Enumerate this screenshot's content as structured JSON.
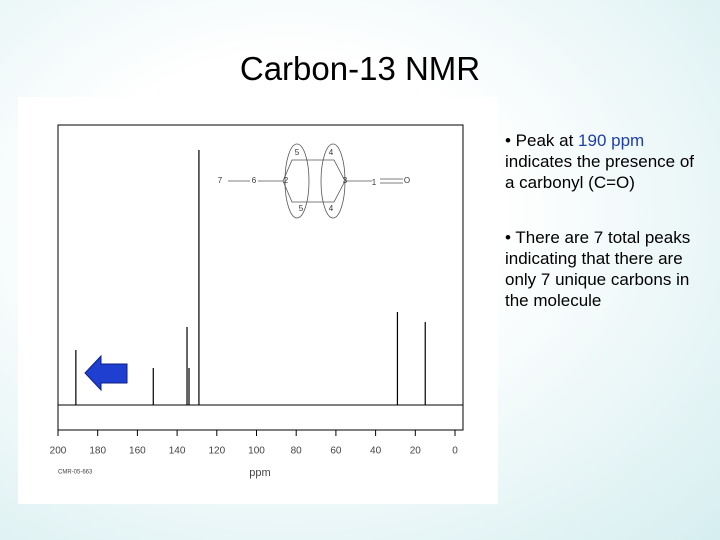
{
  "title": "Carbon-13 NMR",
  "bullets": [
    [
      "• Peak at ",
      "190 ppm",
      " indicates the presence of a carbonyl (C=O)"
    ],
    [
      "• There are 7 total peaks indicating that there are only 7 unique carbons in the molecule"
    ]
  ],
  "molecule": {
    "labels": [
      "7",
      "6",
      "2",
      "5",
      "4",
      "3",
      "5",
      "4",
      "1",
      "O"
    ]
  },
  "chart_data": {
    "type": "stick",
    "xlabel": "ppm",
    "source_label": "CMR-05-663",
    "x": [
      191,
      152,
      135,
      134,
      129,
      29,
      15
    ],
    "values": [
      55,
      37,
      78,
      37,
      255,
      93,
      83
    ],
    "color": "#000000",
    "xlim": [
      200,
      0
    ],
    "xticks": [
      200,
      180,
      160,
      140,
      120,
      100,
      80,
      60,
      40,
      20,
      0
    ],
    "ylim": [
      0,
      280
    ]
  }
}
